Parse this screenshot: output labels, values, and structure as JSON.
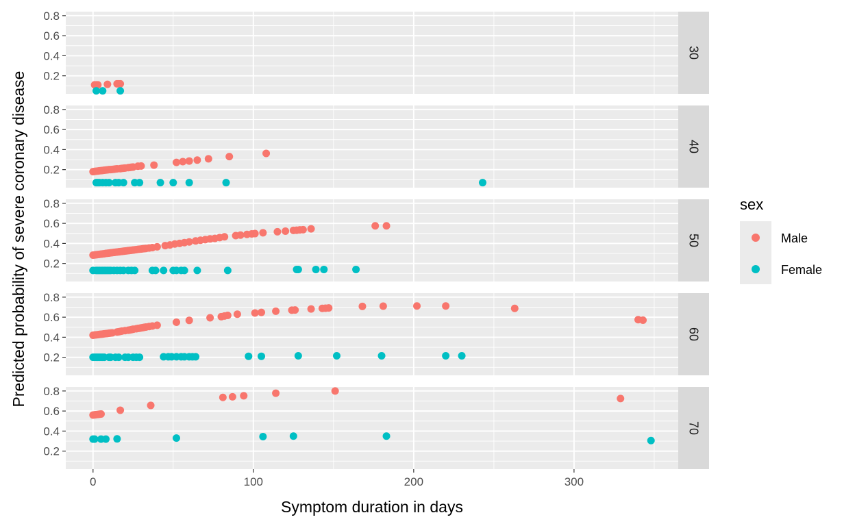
{
  "chart_data": {
    "type": "scatter",
    "facet_by": "age",
    "xlabel": "Symptom duration in days",
    "ylabel": "Predicted probability of severe coronary disease",
    "xlim": [
      -17,
      365
    ],
    "ylim": [
      0.02,
      0.84
    ],
    "x_ticks": [
      0,
      100,
      200,
      300
    ],
    "y_ticks": [
      0.2,
      0.4,
      0.6,
      0.8
    ],
    "grid": true,
    "legend": {
      "title": "sex",
      "position": "right",
      "entries": [
        {
          "label": "Male",
          "color": "#F8766D"
        },
        {
          "label": "Female",
          "color": "#00BFC4"
        }
      ]
    },
    "panels": [
      {
        "label": "30",
        "series": [
          {
            "name": "Male",
            "x": [
              1,
              2,
              3,
              9,
              15,
              16,
              17
            ],
            "y": [
              0.11,
              0.11,
              0.11,
              0.115,
              0.12,
              0.12,
              0.12
            ]
          },
          {
            "name": "Female",
            "x": [
              2,
              6,
              17
            ],
            "y": [
              0.05,
              0.05,
              0.05
            ]
          }
        ]
      },
      {
        "label": "40",
        "series": [
          {
            "name": "Male",
            "x": [
              0,
              1,
              2,
              3,
              4,
              5,
              6,
              7,
              8,
              9,
              10,
              11,
              12,
              13,
              14,
              15,
              17,
              18,
              19,
              20,
              22,
              23,
              24,
              25,
              28,
              30,
              38,
              52,
              56,
              60,
              65,
              72,
              85,
              108
            ],
            "y": [
              0.18,
              0.182,
              0.184,
              0.186,
              0.188,
              0.19,
              0.192,
              0.194,
              0.196,
              0.198,
              0.2,
              0.2,
              0.202,
              0.204,
              0.206,
              0.208,
              0.21,
              0.212,
              0.214,
              0.216,
              0.22,
              0.222,
              0.224,
              0.226,
              0.234,
              0.236,
              0.245,
              0.272,
              0.28,
              0.286,
              0.295,
              0.308,
              0.33,
              0.362
            ]
          },
          {
            "name": "Female",
            "x": [
              2,
              3,
              4,
              6,
              8,
              10,
              14,
              16,
              19,
              26,
              29,
              42,
              50,
              60,
              83,
              243
            ],
            "y": [
              0.07,
              0.07,
              0.07,
              0.07,
              0.07,
              0.07,
              0.07,
              0.07,
              0.07,
              0.07,
              0.07,
              0.07,
              0.07,
              0.07,
              0.07,
              0.07
            ]
          }
        ]
      },
      {
        "label": "50",
        "series": [
          {
            "name": "Male",
            "x": [
              0,
              1,
              2,
              3,
              4,
              5,
              6,
              7,
              8,
              9,
              10,
              11,
              12,
              13,
              14,
              15,
              16,
              17,
              18,
              19,
              20,
              21,
              22,
              23,
              24,
              25,
              26,
              27,
              28,
              29,
              30,
              31,
              32,
              33,
              35,
              37,
              40,
              45,
              48,
              51,
              54,
              57,
              60,
              64,
              67,
              70,
              73,
              76,
              79,
              82,
              89,
              92,
              96,
              99,
              101,
              106,
              115,
              120,
              125,
              127,
              129,
              131,
              136,
              176,
              183
            ],
            "y": [
              0.283,
              0.285,
              0.287,
              0.289,
              0.291,
              0.293,
              0.295,
              0.297,
              0.3,
              0.302,
              0.304,
              0.306,
              0.308,
              0.31,
              0.312,
              0.314,
              0.316,
              0.318,
              0.32,
              0.322,
              0.324,
              0.326,
              0.328,
              0.33,
              0.332,
              0.334,
              0.336,
              0.338,
              0.34,
              0.342,
              0.344,
              0.346,
              0.348,
              0.35,
              0.354,
              0.358,
              0.366,
              0.378,
              0.385,
              0.394,
              0.4,
              0.408,
              0.415,
              0.425,
              0.432,
              0.438,
              0.445,
              0.45,
              0.458,
              0.466,
              0.478,
              0.483,
              0.49,
              0.495,
              0.498,
              0.506,
              0.516,
              0.522,
              0.53,
              0.532,
              0.535,
              0.537,
              0.545,
              0.575,
              0.575
            ]
          },
          {
            "name": "Female",
            "x": [
              0,
              2,
              3,
              4,
              5,
              6,
              7,
              8,
              9,
              10,
              11,
              13,
              15,
              17,
              19,
              22,
              24,
              26,
              37,
              39,
              44,
              50,
              52,
              55,
              57,
              65,
              84,
              127,
              128,
              139,
              144,
              164
            ],
            "y": [
              0.13,
              0.13,
              0.13,
              0.13,
              0.13,
              0.13,
              0.13,
              0.13,
              0.13,
              0.13,
              0.13,
              0.13,
              0.13,
              0.13,
              0.13,
              0.13,
              0.13,
              0.13,
              0.13,
              0.13,
              0.13,
              0.13,
              0.13,
              0.13,
              0.13,
              0.13,
              0.13,
              0.14,
              0.14,
              0.14,
              0.14,
              0.14
            ]
          }
        ]
      },
      {
        "label": "60",
        "series": [
          {
            "name": "Male",
            "x": [
              0,
              1,
              2,
              3,
              4,
              5,
              6,
              7,
              8,
              9,
              10,
              11,
              12,
              15,
              16,
              17,
              18,
              20,
              22,
              23,
              24,
              25,
              27,
              28,
              29,
              30,
              31,
              32,
              33,
              35,
              37,
              40,
              52,
              60,
              73,
              80,
              82,
              84,
              90,
              101,
              105,
              114,
              124,
              126,
              136,
              143,
              145,
              147,
              168,
              181,
              202,
              220,
              263,
              340,
              343
            ],
            "y": [
              0.42,
              0.422,
              0.424,
              0.426,
              0.428,
              0.43,
              0.432,
              0.434,
              0.436,
              0.438,
              0.44,
              0.442,
              0.444,
              0.452,
              0.455,
              0.458,
              0.462,
              0.466,
              0.47,
              0.473,
              0.476,
              0.48,
              0.485,
              0.488,
              0.49,
              0.493,
              0.496,
              0.499,
              0.502,
              0.507,
              0.512,
              0.52,
              0.55,
              0.568,
              0.594,
              0.605,
              0.612,
              0.618,
              0.63,
              0.642,
              0.648,
              0.66,
              0.67,
              0.672,
              0.682,
              0.688,
              0.69,
              0.692,
              0.708,
              0.71,
              0.712,
              0.712,
              0.688,
              0.575,
              0.57
            ]
          },
          {
            "name": "Female",
            "x": [
              0,
              1,
              2,
              3,
              4,
              5,
              6,
              7,
              10,
              11,
              14,
              16,
              20,
              22,
              25,
              27,
              29,
              44,
              47,
              49,
              52,
              55,
              57,
              60,
              62,
              64,
              97,
              105,
              128,
              152,
              180,
              220,
              230
            ],
            "y": [
              0.2,
              0.2,
              0.2,
              0.2,
              0.2,
              0.2,
              0.2,
              0.2,
              0.2,
              0.2,
              0.2,
              0.2,
              0.2,
              0.2,
              0.2,
              0.2,
              0.2,
              0.205,
              0.205,
              0.205,
              0.205,
              0.205,
              0.205,
              0.205,
              0.205,
              0.205,
              0.21,
              0.21,
              0.215,
              0.215,
              0.215,
              0.215,
              0.215
            ]
          }
        ]
      },
      {
        "label": "70",
        "series": [
          {
            "name": "Male",
            "x": [
              0,
              1,
              2,
              3,
              4,
              5,
              17,
              36,
              81,
              87,
              94,
              114,
              151,
              329
            ],
            "y": [
              0.56,
              0.562,
              0.564,
              0.566,
              0.568,
              0.57,
              0.608,
              0.656,
              0.736,
              0.742,
              0.752,
              0.778,
              0.8,
              0.725
            ]
          },
          {
            "name": "Female",
            "x": [
              0,
              1,
              5,
              8,
              15,
              52,
              106,
              125,
              183,
              348
            ],
            "y": [
              0.32,
              0.32,
              0.32,
              0.32,
              0.322,
              0.33,
              0.345,
              0.35,
              0.35,
              0.305
            ]
          }
        ]
      }
    ]
  }
}
